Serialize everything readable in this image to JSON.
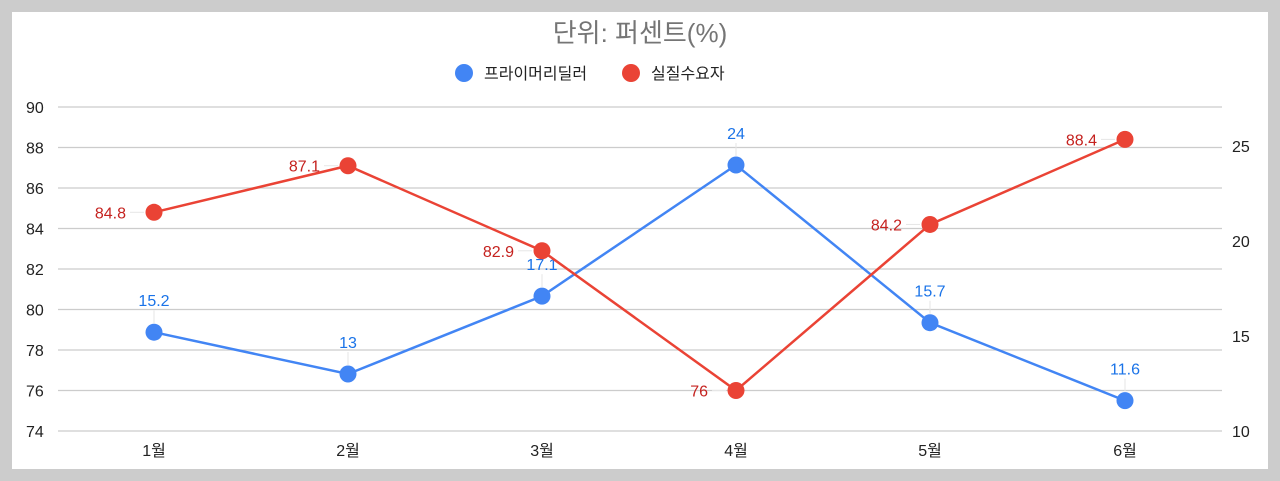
{
  "chart_data": {
    "type": "line",
    "title": "단위: 퍼센트(%)",
    "categories": [
      "1월",
      "2월",
      "3월",
      "4월",
      "5월",
      "6월"
    ],
    "series": [
      {
        "name": "프라이머리딜러",
        "axis": "right",
        "color": "#4285f4",
        "label_color": "#1a73e8",
        "values": [
          15.2,
          13,
          17.1,
          24,
          15.7,
          11.6
        ]
      },
      {
        "name": "실질수요자",
        "axis": "left",
        "color": "#ea4335",
        "label_color": "#c5221f",
        "values": [
          84.8,
          87.1,
          82.9,
          76,
          84.2,
          88.4
        ]
      }
    ],
    "left_axis": {
      "ticks": [
        "90",
        "88",
        "86",
        "84",
        "82",
        "80",
        "78",
        "76",
        "74"
      ],
      "ylim": [
        74,
        90
      ]
    },
    "right_axis": {
      "ticks": [
        "25",
        "20",
        "15",
        "10"
      ],
      "ylim": [
        10,
        27
      ]
    },
    "legend_position": "top",
    "grid": true,
    "xlabel": "",
    "ylabel": ""
  },
  "legend": {
    "items": [
      "프라이머리딜러",
      "실질수요자"
    ]
  }
}
